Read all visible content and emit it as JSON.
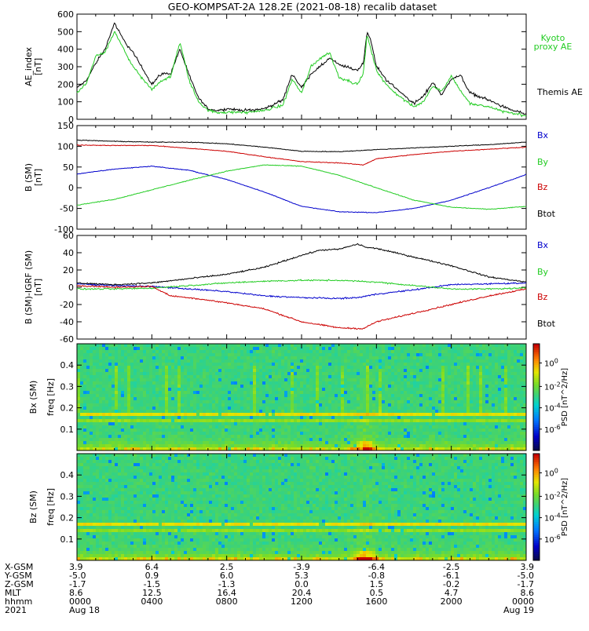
{
  "title": "GEO-KOMPSAT-2A 128.2E (2021-08-18) recalib dataset",
  "colors": {
    "black": "#000000",
    "blue": "#0000cc",
    "green": "#22cc22",
    "red": "#cc0000"
  },
  "x_axis": {
    "range_hours": [
      0,
      24
    ],
    "tick_hours": [
      0,
      4,
      8,
      12,
      16,
      20,
      24
    ],
    "rows": [
      {
        "label": "X-GSM",
        "values": [
          "3.9",
          "6.4",
          "2.5",
          "-3.9",
          "-6.4",
          "-2.5",
          "3.9"
        ]
      },
      {
        "label": "Y-GSM",
        "values": [
          "-5.0",
          "0.9",
          "6.0",
          "5.3",
          "-0.8",
          "-6.1",
          "-5.0"
        ]
      },
      {
        "label": "Z-GSM",
        "values": [
          "-1.7",
          "-1.5",
          "-1.3",
          "0.0",
          "1.5",
          "-0.2",
          "-1.7"
        ]
      },
      {
        "label": "MLT",
        "values": [
          "8.6",
          "12.5",
          "16.4",
          "20.4",
          "0.5",
          "4.7",
          "8.6"
        ]
      },
      {
        "label": "hhmm",
        "values": [
          "0000",
          "0400",
          "0800",
          "1200",
          "1600",
          "2000",
          "0000"
        ]
      },
      {
        "label": "2021",
        "values": [
          "Aug 18",
          "",
          "",
          "",
          "",
          "",
          "Aug 19"
        ]
      }
    ]
  },
  "chart_data": [
    {
      "type": "line",
      "panel": "AE index",
      "ylabel": [
        "AE_index",
        "[nT]"
      ],
      "ylim": [
        0,
        600
      ],
      "yticks": [
        0,
        100,
        200,
        300,
        400,
        500,
        600
      ],
      "series": [
        {
          "name": "Themis AE",
          "color": "#000000",
          "x_hours": [
            0,
            0.5,
            1,
            1.5,
            2,
            2.5,
            3,
            3.5,
            4,
            4.5,
            5,
            5.5,
            6,
            6.5,
            7,
            7.5,
            8,
            9,
            10,
            11,
            11.5,
            12,
            12.5,
            13,
            13.5,
            14,
            15,
            15.3,
            15.5,
            15.7,
            16,
            16.5,
            17,
            18,
            18.5,
            19,
            19.5,
            20,
            20.5,
            21,
            22,
            23,
            24
          ],
          "values": [
            180,
            220,
            320,
            400,
            550,
            450,
            380,
            290,
            200,
            260,
            260,
            400,
            250,
            120,
            60,
            50,
            60,
            50,
            60,
            110,
            260,
            180,
            260,
            300,
            350,
            310,
            280,
            320,
            500,
            450,
            300,
            230,
            180,
            90,
            130,
            210,
            140,
            230,
            250,
            150,
            110,
            60,
            30
          ]
        },
        {
          "name": "Kyoto proxy AE",
          "color": "#22cc22",
          "x_hours": [
            0,
            0.5,
            1,
            1.5,
            2,
            2.5,
            3,
            3.5,
            4,
            4.5,
            5,
            5.5,
            6,
            6.5,
            7,
            7.5,
            8,
            9,
            10,
            11,
            11.5,
            12,
            12.5,
            13,
            13.5,
            14,
            15,
            15.3,
            15.5,
            15.7,
            16,
            16.5,
            17,
            18,
            18.5,
            19,
            19.5,
            20,
            20.5,
            21,
            22,
            23,
            24
          ],
          "values": [
            150,
            200,
            360,
            380,
            500,
            400,
            300,
            230,
            170,
            220,
            240,
            440,
            220,
            100,
            50,
            40,
            40,
            40,
            50,
            80,
            230,
            150,
            300,
            350,
            380,
            240,
            200,
            260,
            480,
            400,
            280,
            200,
            150,
            70,
            100,
            190,
            160,
            250,
            160,
            90,
            70,
            40,
            20
          ]
        }
      ],
      "legend": [
        "Kyoto",
        "proxy AE",
        "Themis AE"
      ]
    },
    {
      "type": "line",
      "panel": "B (SM)",
      "ylabel": [
        "B (SM)",
        "[nT]"
      ],
      "ylim": [
        -100,
        150
      ],
      "yticks": [
        -100,
        -50,
        0,
        50,
        100,
        150
      ],
      "series": [
        {
          "name": "Bx",
          "color": "#0000cc",
          "x_hours": [
            0,
            2,
            4,
            6,
            8,
            10,
            12,
            14,
            16,
            18,
            20,
            22,
            24
          ],
          "values": [
            33,
            45,
            52,
            42,
            20,
            -10,
            -45,
            -58,
            -60,
            -50,
            -30,
            0,
            32
          ]
        },
        {
          "name": "By",
          "color": "#22cc22",
          "x_hours": [
            0,
            2,
            4,
            6,
            8,
            10,
            12,
            14,
            16,
            18,
            20,
            22,
            24
          ],
          "values": [
            -42,
            -28,
            -5,
            18,
            40,
            55,
            52,
            30,
            0,
            -30,
            -47,
            -52,
            -45
          ]
        },
        {
          "name": "Bz",
          "color": "#cc0000",
          "x_hours": [
            0,
            2,
            4,
            6,
            8,
            10,
            12,
            14,
            15.3,
            16,
            18,
            20,
            22,
            24
          ],
          "values": [
            103,
            102,
            102,
            95,
            88,
            75,
            63,
            60,
            55,
            70,
            80,
            88,
            93,
            98
          ]
        },
        {
          "name": "Btot",
          "color": "#000000",
          "x_hours": [
            0,
            2,
            4,
            6,
            8,
            10,
            12,
            14,
            16,
            18,
            20,
            22,
            24
          ],
          "values": [
            115,
            112,
            110,
            110,
            106,
            98,
            88,
            87,
            92,
            96,
            100,
            104,
            110
          ]
        }
      ],
      "legend": [
        "Bx",
        "By",
        "Bz",
        "Btot"
      ]
    },
    {
      "type": "line",
      "panel": "B (SM)-IGRF (SM)",
      "ylabel": [
        "B (SM)-IGRF (SM)",
        "[nT]"
      ],
      "ylim": [
        -60,
        60
      ],
      "yticks": [
        -60,
        -40,
        -20,
        0,
        20,
        40,
        60
      ],
      "series": [
        {
          "name": "Bx",
          "color": "#0000cc",
          "x_hours": [
            0,
            2,
            4,
            6,
            8,
            10,
            12,
            14,
            15,
            16,
            18,
            20,
            22,
            24
          ],
          "values": [
            4,
            2,
            1,
            -2,
            -5,
            -10,
            -12,
            -13,
            -12,
            -8,
            -3,
            3,
            4,
            5
          ]
        },
        {
          "name": "By",
          "color": "#22cc22",
          "x_hours": [
            0,
            2,
            4,
            6,
            8,
            10,
            12,
            14,
            15,
            16,
            18,
            20,
            22,
            24
          ],
          "values": [
            -2,
            -2,
            -1,
            2,
            5,
            7,
            8,
            8,
            7,
            6,
            2,
            -2,
            -2,
            -1
          ]
        },
        {
          "name": "Bz",
          "color": "#cc0000",
          "x_hours": [
            0,
            2,
            4,
            5,
            6,
            8,
            10,
            12,
            14,
            15.3,
            16,
            18,
            20,
            22,
            24
          ],
          "values": [
            2,
            0,
            1,
            -10,
            -12,
            -18,
            -25,
            -40,
            -47,
            -48,
            -40,
            -30,
            -20,
            -10,
            -2
          ]
        },
        {
          "name": "Btot",
          "color": "#000000",
          "x_hours": [
            0,
            2,
            4,
            6,
            8,
            10,
            12,
            13,
            14,
            15,
            15.5,
            16,
            18,
            20,
            22,
            24
          ],
          "values": [
            5,
            3,
            5,
            10,
            15,
            23,
            37,
            43,
            44,
            50,
            46,
            45,
            35,
            25,
            12,
            6
          ]
        }
      ],
      "legend": [
        "Bx",
        "By",
        "Bz",
        "Btot"
      ]
    },
    {
      "type": "heatmap",
      "panel": "Bx (SM) spectrogram",
      "ylabel": [
        "Bx (SM)",
        "freq [Hz]"
      ],
      "ylim": [
        0,
        0.5
      ],
      "yticks": [
        0.1,
        0.2,
        0.3,
        0.4
      ],
      "colorbar": {
        "label": "PSD [nT^2/Hz]",
        "ticks": [
          "10^-6",
          "10^-4",
          "10^-2",
          "10^0"
        ]
      }
    },
    {
      "type": "heatmap",
      "panel": "Bz (SM) spectrogram",
      "ylabel": [
        "Bz (SM)",
        "freq [Hz]"
      ],
      "ylim": [
        0,
        0.5
      ],
      "yticks": [
        0.1,
        0.2,
        0.3,
        0.4
      ],
      "colorbar": {
        "label": "PSD [nT^2/Hz]",
        "ticks": [
          "10^-6",
          "10^-4",
          "10^-2",
          "10^0"
        ]
      }
    }
  ]
}
